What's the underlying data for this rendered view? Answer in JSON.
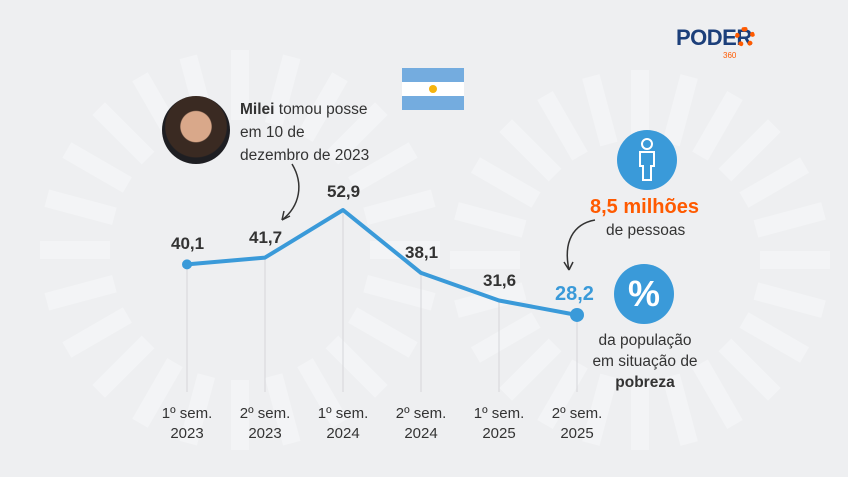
{
  "logo": {
    "text": "PODER",
    "sub": "360"
  },
  "annotation": {
    "bold": "Milei",
    "rest1": " tomou posse",
    "line2": "em 10 de",
    "line3": "dezembro de 2023"
  },
  "people": {
    "value": "8,5 milhões",
    "label": "de pessoas"
  },
  "percent": {
    "symbol": "%",
    "line1": "da população",
    "line2": "em situação de",
    "line3": "pobreza"
  },
  "colors": {
    "line": "#3a9ad9",
    "accent": "#ff5a00",
    "text": "#333333",
    "flag": "#74acdf"
  },
  "chart_data": {
    "type": "line",
    "title": "",
    "categories": [
      [
        "1º sem.",
        "2023"
      ],
      [
        "2º sem.",
        "2023"
      ],
      [
        "1º sem.",
        "2024"
      ],
      [
        "2º sem.",
        "2024"
      ],
      [
        "1º sem.",
        "2025"
      ],
      [
        "2º sem.",
        "2025"
      ]
    ],
    "values": [
      40.1,
      41.7,
      52.9,
      38.1,
      31.6,
      28.2
    ],
    "value_labels": [
      "40,1",
      "41,7",
      "52,9",
      "38,1",
      "31,6",
      "28,2"
    ],
    "ylabel": "",
    "xlabel": "",
    "ylim": [
      0,
      60
    ],
    "grid": "vertical"
  }
}
